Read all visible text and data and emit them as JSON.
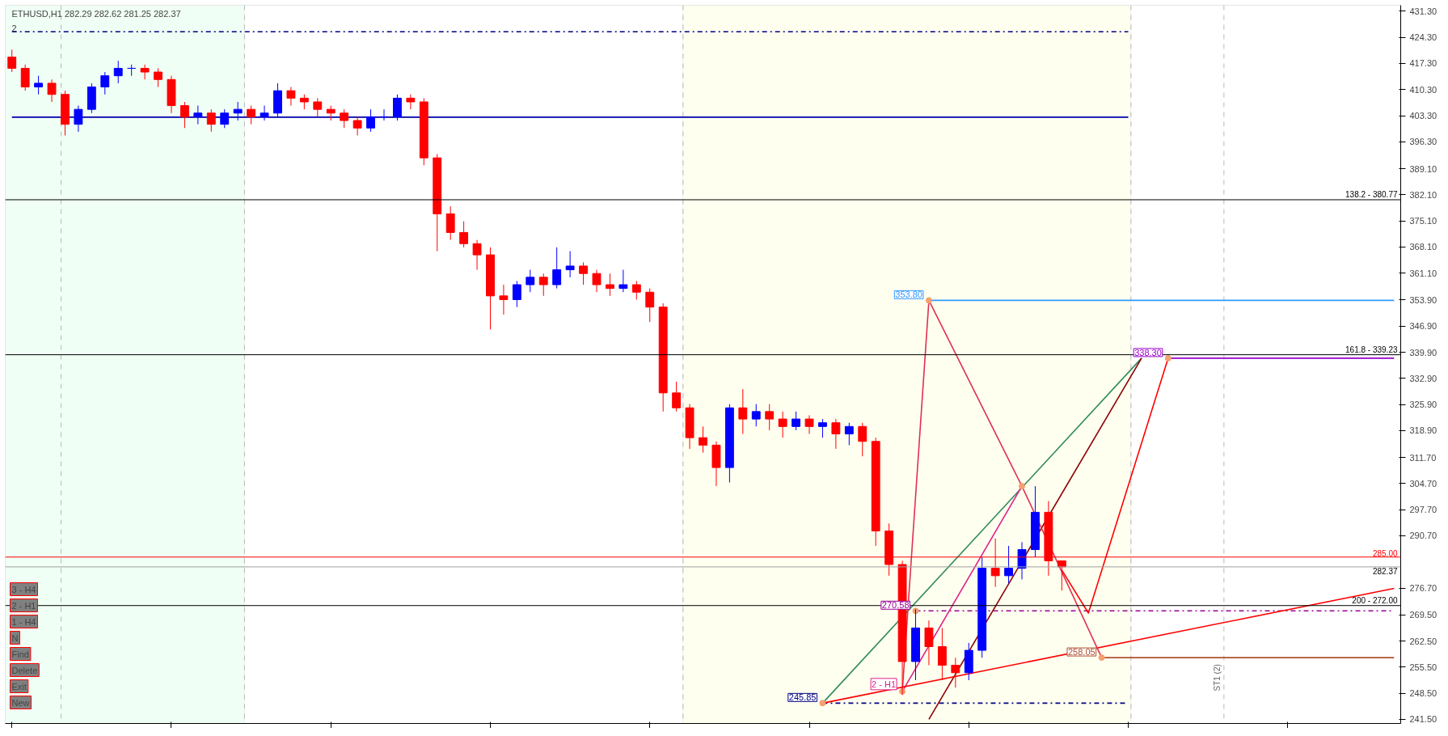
{
  "chart_data": {
    "type": "candlestick",
    "title": "ETHUSD,H1  282.29 282.62 281.25 282.37",
    "subtitle": "2",
    "categories": [
      null,
      null,
      null,
      null,
      null,
      null,
      null,
      null,
      null,
      null,
      null,
      null,
      null,
      null,
      null,
      null,
      null,
      null,
      null,
      null,
      null,
      null,
      null,
      null,
      null,
      null,
      null,
      null,
      null,
      null,
      null,
      null,
      null,
      null,
      null,
      null,
      null,
      null,
      null,
      null,
      null,
      null,
      null,
      null,
      null,
      null,
      null,
      null,
      null,
      null,
      null,
      null,
      null,
      null,
      null,
      null,
      null,
      null,
      null,
      null,
      null,
      null,
      null,
      null,
      null,
      null,
      null,
      null,
      null,
      null,
      null,
      null,
      null,
      null,
      null,
      null,
      null,
      null,
      null,
      null,
      null,
      null,
      null,
      null,
      null,
      null,
      null,
      null,
      null,
      null,
      null,
      null,
      null,
      null,
      null,
      null,
      null,
      null,
      null,
      null,
      null,
      null,
      null,
      null,
      null
    ],
    "ohlc": [
      [
        419,
        421,
        415,
        416
      ],
      [
        416,
        417,
        410,
        411
      ],
      [
        411,
        414,
        409,
        412
      ],
      [
        412,
        413,
        407,
        409
      ],
      [
        409,
        410,
        398,
        401
      ],
      [
        401,
        406,
        399,
        405
      ],
      [
        405,
        412,
        404,
        411
      ],
      [
        411,
        415,
        409,
        414
      ],
      [
        414,
        418,
        412,
        416
      ],
      [
        416,
        417,
        414,
        416
      ],
      [
        416,
        417,
        413,
        415
      ],
      [
        415,
        416,
        411,
        413
      ],
      [
        413,
        414,
        404,
        406
      ],
      [
        406,
        407,
        400,
        403
      ],
      [
        403,
        406,
        401,
        404
      ],
      [
        404,
        405,
        399,
        401
      ],
      [
        401,
        405,
        400,
        404
      ],
      [
        404,
        407,
        402,
        405
      ],
      [
        405,
        406,
        401,
        403
      ],
      [
        403,
        406,
        402,
        404
      ],
      [
        404,
        412,
        403,
        410
      ],
      [
        410,
        411,
        406,
        408
      ],
      [
        408,
        409,
        405,
        407
      ],
      [
        407,
        408,
        403,
        405
      ],
      [
        405,
        406,
        402,
        404
      ],
      [
        404,
        405,
        400,
        402
      ],
      [
        402,
        403,
        398,
        400
      ],
      [
        400,
        405,
        399,
        403
      ],
      [
        403,
        405,
        402,
        403
      ],
      [
        403,
        409,
        402,
        408
      ],
      [
        408,
        409,
        405,
        407
      ],
      [
        407,
        408,
        390,
        392
      ],
      [
        392,
        393,
        367,
        377
      ],
      [
        377,
        379,
        370,
        372
      ],
      [
        372,
        375,
        368,
        369
      ],
      [
        369,
        370,
        362,
        366
      ],
      [
        366,
        368,
        346,
        355
      ],
      [
        355,
        358,
        350,
        354
      ],
      [
        354,
        359,
        352,
        358
      ],
      [
        358,
        362,
        356,
        360
      ],
      [
        360,
        361,
        355,
        358
      ],
      [
        358,
        368,
        357,
        362
      ],
      [
        362,
        367,
        360,
        363
      ],
      [
        363,
        364,
        358,
        361
      ],
      [
        361,
        362,
        356,
        358
      ],
      [
        358,
        361,
        355,
        357
      ],
      [
        357,
        362,
        356,
        358
      ],
      [
        358,
        359,
        354,
        356
      ],
      [
        356,
        357,
        348,
        352
      ],
      [
        352,
        353,
        324,
        329
      ],
      [
        329,
        332,
        324,
        325
      ],
      [
        325,
        326,
        314,
        317
      ],
      [
        317,
        320,
        313,
        315
      ],
      [
        315,
        316,
        304,
        309
      ],
      [
        309,
        326,
        305,
        325
      ],
      [
        325,
        330,
        318,
        322
      ],
      [
        322,
        326,
        320,
        324
      ],
      [
        324,
        326,
        319,
        322
      ],
      [
        322,
        324,
        317,
        320
      ],
      [
        320,
        324,
        319,
        322
      ],
      [
        322,
        323,
        318,
        320
      ],
      [
        320,
        322,
        317,
        321
      ],
      [
        321,
        322,
        314,
        318
      ],
      [
        318,
        321,
        315,
        320
      ],
      [
        320,
        321,
        312,
        316
      ],
      [
        316,
        317,
        288,
        292
      ],
      [
        292,
        294,
        280,
        283
      ],
      [
        283,
        284,
        248,
        257
      ],
      [
        257,
        271,
        252,
        266
      ],
      [
        266,
        268,
        256,
        261
      ],
      [
        261,
        266,
        252,
        256
      ],
      [
        256,
        258,
        250,
        254
      ],
      [
        254,
        262,
        252,
        260
      ],
      [
        260,
        285,
        258,
        282
      ],
      [
        282,
        290,
        277,
        280
      ],
      [
        280,
        288,
        278,
        282
      ],
      [
        282,
        289,
        279,
        287
      ],
      [
        287,
        304,
        285,
        297
      ],
      [
        297,
        300,
        280,
        284
      ],
      [
        284,
        284,
        276,
        282.37
      ],
      null,
      null,
      null,
      null,
      null,
      null,
      null,
      null,
      null,
      null,
      null,
      null,
      null,
      null,
      null,
      null,
      null,
      null,
      null,
      null,
      null,
      null,
      null,
      null,
      null
    ],
    "colors": [
      "#ff0000",
      "#ff0000",
      "#0000ff",
      "#ff0000",
      "#ff0000",
      "#0000ff",
      "#0000ff",
      "#0000ff",
      "#0000ff",
      "#0000ff",
      "#ff0000",
      "#ff0000",
      "#ff0000",
      "#ff0000",
      "#0000ff",
      "#ff0000",
      "#0000ff",
      "#0000ff",
      "#ff0000",
      "#0000ff",
      "#0000ff",
      "#ff0000",
      "#ff0000",
      "#ff0000",
      "#ff0000",
      "#ff0000",
      "#ff0000",
      "#0000ff",
      "#0000ff",
      "#0000ff",
      "#ff0000",
      "#ff0000",
      "#ff0000",
      "#ff0000",
      "#ff0000",
      "#ff0000",
      "#ff0000",
      "#ff0000",
      "#0000ff",
      "#0000ff",
      "#ff0000",
      "#0000ff",
      "#0000ff",
      "#ff0000",
      "#ff0000",
      "#ff0000",
      "#0000ff",
      "#ff0000",
      "#ff0000",
      "#ff0000",
      "#ff0000",
      "#ff0000",
      "#ff0000",
      "#ff0000",
      "#0000ff",
      "#ff0000",
      "#0000ff",
      "#ff0000",
      "#ff0000",
      "#0000ff",
      "#ff0000",
      "#0000ff",
      "#ff0000",
      "#0000ff",
      "#ff0000",
      "#ff0000",
      "#ff0000",
      "#ff0000",
      "#0000ff",
      "#ff0000",
      "#ff0000",
      "#ff0000",
      "#0000ff",
      "#0000ff",
      "#ff0000",
      "#0000ff",
      "#0000ff",
      "#0000ff",
      "#ff0000",
      "#ff0000",
      null,
      null,
      null,
      null,
      null,
      null,
      null,
      null,
      null,
      null,
      null,
      null,
      null,
      null,
      null,
      null,
      null,
      null,
      null,
      null,
      null,
      null,
      null,
      null,
      null
    ],
    "series": [
      {
        "type": "line",
        "color": "#000080",
        "line_style": "dashed",
        "values": [
          425.8,
          null,
          null,
          null,
          null,
          null,
          null,
          null,
          null,
          null,
          null,
          null,
          null,
          null,
          null,
          null,
          null,
          null,
          null,
          null,
          null,
          null,
          null,
          null,
          null,
          null,
          null,
          null,
          null,
          null,
          null,
          null,
          null,
          null,
          null,
          null,
          null,
          null,
          null,
          null,
          null,
          null,
          null,
          null,
          null,
          null,
          null,
          null,
          null,
          null,
          null,
          null,
          null,
          null,
          null,
          null,
          null,
          null,
          null,
          null,
          null,
          null,
          null,
          null,
          null,
          null,
          null,
          null,
          null,
          null,
          null,
          null,
          null,
          null,
          null,
          null,
          null,
          null,
          null,
          null,
          null,
          null,
          null,
          null,
          425.8,
          null,
          null,
          null,
          null,
          null,
          null,
          null,
          null,
          null,
          null,
          null,
          null,
          null,
          null,
          null,
          null,
          null,
          null,
          null,
          null
        ]
      },
      {
        "type": "line",
        "color": "#0000aa",
        "values": [
          402.9,
          null,
          null,
          null,
          null,
          null,
          null,
          null,
          null,
          null,
          null,
          null,
          null,
          null,
          null,
          null,
          null,
          null,
          null,
          null,
          null,
          null,
          null,
          null,
          null,
          null,
          null,
          null,
          null,
          null,
          null,
          null,
          null,
          null,
          null,
          null,
          null,
          null,
          null,
          null,
          null,
          null,
          null,
          null,
          null,
          null,
          null,
          null,
          null,
          null,
          null,
          null,
          null,
          null,
          null,
          null,
          null,
          null,
          null,
          null,
          null,
          null,
          null,
          null,
          null,
          null,
          null,
          null,
          null,
          null,
          null,
          null,
          null,
          null,
          null,
          null,
          null,
          null,
          null,
          null,
          null,
          null,
          null,
          null,
          402.9,
          null,
          null,
          null,
          null,
          null,
          null,
          null,
          null,
          null,
          null,
          null,
          null,
          null,
          null,
          null,
          null,
          null,
          null,
          null,
          null
        ]
      },
      {
        "type": "line",
        "name": "353.80",
        "color": "#3399ff",
        "values": [
          null,
          null,
          null,
          null,
          null,
          null,
          null,
          null,
          null,
          null,
          null,
          null,
          null,
          null,
          null,
          null,
          null,
          null,
          null,
          null,
          null,
          null,
          null,
          null,
          null,
          null,
          null,
          null,
          null,
          null,
          null,
          null,
          null,
          null,
          null,
          null,
          null,
          null,
          null,
          null,
          null,
          null,
          null,
          null,
          null,
          null,
          null,
          null,
          null,
          null,
          null,
          null,
          null,
          null,
          null,
          null,
          null,
          null,
          null,
          null,
          null,
          null,
          null,
          null,
          null,
          null,
          null,
          null,
          null,
          353.8,
          null,
          null,
          null,
          null,
          null,
          null,
          null,
          null,
          null,
          null,
          null,
          null,
          null,
          null,
          null,
          null,
          null,
          null,
          null,
          null,
          null,
          null,
          null,
          null,
          null,
          null,
          null,
          null,
          null,
          null,
          null,
          null,
          null,
          null,
          353.8
        ]
      },
      {
        "type": "line",
        "name": "338.30",
        "color": "#9900cc",
        "values": [
          null,
          null,
          null,
          null,
          null,
          null,
          null,
          null,
          null,
          null,
          null,
          null,
          null,
          null,
          null,
          null,
          null,
          null,
          null,
          null,
          null,
          null,
          null,
          null,
          null,
          null,
          null,
          null,
          null,
          null,
          null,
          null,
          null,
          null,
          null,
          null,
          null,
          null,
          null,
          null,
          null,
          null,
          null,
          null,
          null,
          null,
          null,
          null,
          null,
          null,
          null,
          null,
          null,
          null,
          null,
          null,
          null,
          null,
          null,
          null,
          null,
          null,
          null,
          null,
          null,
          null,
          null,
          null,
          null,
          null,
          null,
          null,
          null,
          null,
          null,
          null,
          null,
          null,
          null,
          null,
          null,
          null,
          null,
          null,
          null,
          null,
          null,
          338.3,
          null,
          null,
          null,
          null,
          null,
          null,
          null,
          null,
          null,
          null,
          null,
          null,
          null,
          null,
          null,
          null,
          338.3
        ]
      },
      {
        "type": "line",
        "name": "270.58",
        "color": "#990099",
        "line_style": "dashed",
        "values": [
          null,
          null,
          null,
          null,
          null,
          null,
          null,
          null,
          null,
          null,
          null,
          null,
          null,
          null,
          null,
          null,
          null,
          null,
          null,
          null,
          null,
          null,
          null,
          null,
          null,
          null,
          null,
          null,
          null,
          null,
          null,
          null,
          null,
          null,
          null,
          null,
          null,
          null,
          null,
          null,
          null,
          null,
          null,
          null,
          null,
          null,
          null,
          null,
          null,
          null,
          null,
          null,
          null,
          null,
          null,
          null,
          null,
          null,
          null,
          null,
          null,
          null,
          null,
          null,
          null,
          null,
          null,
          null,
          270.58,
          null,
          null,
          null,
          null,
          null,
          null,
          null,
          null,
          null,
          null,
          null,
          null,
          null,
          null,
          null,
          null,
          null,
          null,
          null,
          null,
          null,
          null,
          null,
          null,
          null,
          null,
          null,
          null,
          null,
          null,
          null,
          null,
          null,
          null,
          null,
          270.58
        ]
      },
      {
        "type": "line",
        "name": "258.05",
        "color": "#b05030",
        "values": [
          null,
          null,
          null,
          null,
          null,
          null,
          null,
          null,
          null,
          null,
          null,
          null,
          null,
          null,
          null,
          null,
          null,
          null,
          null,
          null,
          null,
          null,
          null,
          null,
          null,
          null,
          null,
          null,
          null,
          null,
          null,
          null,
          null,
          null,
          null,
          null,
          null,
          null,
          null,
          null,
          null,
          null,
          null,
          null,
          null,
          null,
          null,
          null,
          null,
          null,
          null,
          null,
          null,
          null,
          null,
          null,
          null,
          null,
          null,
          null,
          null,
          null,
          null,
          null,
          null,
          null,
          null,
          null,
          null,
          null,
          null,
          null,
          null,
          null,
          null,
          null,
          null,
          null,
          null,
          null,
          null,
          null,
          258.05,
          null,
          null,
          null,
          null,
          null,
          null,
          null,
          null,
          null,
          null,
          null,
          null,
          null,
          null,
          null,
          null,
          null,
          null,
          null,
          null,
          null,
          258.05
        ]
      },
      {
        "type": "line",
        "name": "245.85",
        "color": "#000080",
        "line_style": "dashed",
        "values": [
          null,
          null,
          null,
          null,
          null,
          null,
          null,
          null,
          null,
          null,
          null,
          null,
          null,
          null,
          null,
          null,
          null,
          null,
          null,
          null,
          null,
          null,
          null,
          null,
          null,
          null,
          null,
          null,
          null,
          null,
          null,
          null,
          null,
          null,
          null,
          null,
          null,
          null,
          null,
          null,
          null,
          null,
          null,
          null,
          null,
          null,
          null,
          null,
          null,
          null,
          null,
          null,
          null,
          null,
          null,
          null,
          null,
          null,
          null,
          null,
          null,
          245.85,
          null,
          null,
          null,
          null,
          null,
          null,
          null,
          null,
          null,
          null,
          null,
          null,
          null,
          null,
          null,
          null,
          null,
          null,
          null,
          null,
          null,
          null,
          245.85,
          null,
          null,
          null,
          null,
          null,
          null,
          null,
          null,
          null,
          null,
          null,
          null,
          null,
          null,
          null,
          null,
          null,
          null,
          null,
          null
        ]
      },
      {
        "type": "line",
        "color": "#2e8b57",
        "values": [
          null,
          null,
          null,
          null,
          null,
          null,
          null,
          null,
          null,
          null,
          null,
          null,
          null,
          null,
          null,
          null,
          null,
          null,
          null,
          null,
          null,
          null,
          null,
          null,
          null,
          null,
          null,
          null,
          null,
          null,
          null,
          null,
          null,
          null,
          null,
          null,
          null,
          null,
          null,
          null,
          null,
          null,
          null,
          null,
          null,
          null,
          null,
          null,
          null,
          null,
          null,
          null,
          null,
          null,
          null,
          null,
          null,
          null,
          null,
          null,
          null,
          245.85,
          null,
          null,
          null,
          null,
          null,
          null,
          null,
          null,
          null,
          null,
          null,
          null,
          null,
          null,
          null,
          null,
          null,
          null,
          null,
          null,
          null,
          null,
          null,
          338.3,
          null,
          null,
          null,
          null,
          null,
          null,
          null,
          null,
          null,
          null,
          null,
          null,
          null,
          null,
          null,
          null,
          null,
          null,
          null
        ]
      },
      {
        "type": "line",
        "color": "#8b0000",
        "values": [
          null,
          null,
          null,
          null,
          null,
          null,
          null,
          null,
          null,
          null,
          null,
          null,
          null,
          null,
          null,
          null,
          null,
          null,
          null,
          null,
          null,
          null,
          null,
          null,
          null,
          null,
          null,
          null,
          null,
          null,
          null,
          null,
          null,
          null,
          null,
          null,
          null,
          null,
          null,
          null,
          null,
          null,
          null,
          null,
          null,
          null,
          null,
          null,
          null,
          null,
          null,
          null,
          null,
          null,
          null,
          null,
          null,
          null,
          null,
          null,
          null,
          null,
          null,
          null,
          null,
          null,
          null,
          null,
          null,
          241.5,
          null,
          null,
          null,
          null,
          null,
          null,
          null,
          null,
          null,
          null,
          null,
          null,
          null,
          null,
          null,
          338.3,
          null,
          null,
          null,
          null,
          null,
          null,
          null,
          null,
          null,
          null,
          null,
          null,
          null,
          null,
          null,
          null,
          null,
          null,
          null
        ]
      },
      {
        "type": "line",
        "name": "2 - H1",
        "color": "#dd2288",
        "values": [
          null,
          null,
          null,
          null,
          null,
          null,
          null,
          null,
          null,
          null,
          null,
          null,
          null,
          null,
          null,
          null,
          null,
          null,
          null,
          null,
          null,
          null,
          null,
          null,
          null,
          null,
          null,
          null,
          null,
          null,
          null,
          null,
          null,
          null,
          null,
          null,
          null,
          null,
          null,
          null,
          null,
          null,
          null,
          null,
          null,
          null,
          null,
          null,
          null,
          null,
          null,
          null,
          null,
          null,
          null,
          null,
          null,
          null,
          null,
          null,
          null,
          null,
          null,
          null,
          null,
          null,
          null,
          249,
          null,
          null,
          null,
          null,
          null,
          null,
          null,
          null,
          304,
          null,
          null,
          null,
          null,
          null,
          null,
          null,
          null,
          null,
          null,
          null,
          null,
          null,
          null,
          null,
          null,
          null,
          null,
          null,
          null,
          null,
          null,
          null,
          null,
          null,
          null,
          null,
          null
        ]
      },
      {
        "type": "line",
        "color": "#ff0000",
        "values": [
          null,
          null,
          null,
          null,
          null,
          null,
          null,
          null,
          null,
          null,
          null,
          null,
          null,
          null,
          null,
          null,
          null,
          null,
          null,
          null,
          null,
          null,
          null,
          null,
          null,
          null,
          null,
          null,
          null,
          null,
          null,
          null,
          null,
          null,
          null,
          null,
          null,
          null,
          null,
          null,
          null,
          null,
          null,
          null,
          null,
          null,
          null,
          null,
          null,
          null,
          null,
          null,
          null,
          null,
          null,
          null,
          null,
          null,
          null,
          null,
          null,
          245.85,
          null,
          null,
          null,
          null,
          null,
          null,
          null,
          null,
          null,
          null,
          null,
          null,
          null,
          null,
          null,
          null,
          null,
          null,
          null,
          null,
          null,
          null,
          null,
          null,
          null,
          null,
          null,
          null,
          null,
          null,
          null,
          null,
          null,
          null,
          null,
          null,
          null,
          null,
          null,
          null,
          null,
          null,
          276.6
        ]
      },
      {
        "type": "line",
        "color": "#ff0000",
        "values": [
          null,
          null,
          null,
          null,
          null,
          null,
          null,
          null,
          null,
          null,
          null,
          null,
          null,
          null,
          null,
          null,
          null,
          null,
          null,
          null,
          null,
          null,
          null,
          null,
          null,
          null,
          null,
          null,
          null,
          null,
          null,
          null,
          null,
          null,
          null,
          null,
          null,
          null,
          null,
          null,
          null,
          null,
          null,
          null,
          null,
          null,
          null,
          null,
          null,
          null,
          null,
          null,
          null,
          null,
          null,
          null,
          null,
          null,
          null,
          null,
          null,
          null,
          null,
          null,
          null,
          null,
          null,
          null,
          null,
          null,
          null,
          null,
          null,
          null,
          null,
          null,
          null,
          null,
          null,
          281.5,
          null,
          270,
          null,
          null,
          null,
          null,
          null,
          338.3,
          null,
          null,
          null,
          null,
          null,
          null,
          null,
          null,
          null,
          null,
          null,
          null,
          null,
          null,
          null,
          null,
          null
        ]
      },
      {
        "type": "line",
        "color": "#e03050",
        "values": [
          null,
          null,
          null,
          null,
          null,
          null,
          null,
          null,
          null,
          null,
          null,
          null,
          null,
          null,
          null,
          null,
          null,
          null,
          null,
          null,
          null,
          null,
          null,
          null,
          null,
          null,
          null,
          null,
          null,
          null,
          null,
          null,
          null,
          null,
          null,
          null,
          null,
          null,
          null,
          null,
          null,
          null,
          null,
          null,
          null,
          null,
          null,
          null,
          null,
          null,
          null,
          null,
          null,
          null,
          null,
          null,
          null,
          null,
          null,
          null,
          null,
          null,
          null,
          null,
          null,
          null,
          null,
          249,
          null,
          353.8,
          null,
          null,
          null,
          null,
          null,
          null,
          304,
          null,
          null,
          null,
          null,
          null,
          258.05,
          null,
          null,
          null,
          null,
          null,
          null,
          null,
          null,
          null,
          null,
          null,
          null,
          null,
          null,
          null,
          null,
          null,
          null,
          null,
          null,
          null,
          null
        ]
      },
      {
        "type": "scatter",
        "color": "#f4a070",
        "marker": "circle",
        "values": [
          null,
          null,
          null,
          null,
          null,
          null,
          null,
          null,
          null,
          null,
          null,
          null,
          null,
          null,
          null,
          null,
          null,
          null,
          null,
          null,
          null,
          null,
          null,
          null,
          null,
          null,
          null,
          null,
          null,
          null,
          null,
          null,
          null,
          null,
          null,
          null,
          null,
          null,
          null,
          null,
          null,
          null,
          null,
          null,
          null,
          null,
          null,
          null,
          null,
          null,
          null,
          null,
          null,
          null,
          null,
          null,
          null,
          null,
          null,
          null,
          null,
          245.85,
          null,
          null,
          null,
          null,
          null,
          249,
          270.58,
          353.8,
          null,
          null,
          null,
          null,
          null,
          null,
          304,
          null,
          null,
          null,
          null,
          null,
          258.05,
          null,
          null,
          null,
          null,
          338.3,
          null,
          null,
          null,
          null,
          null,
          null,
          null,
          null,
          null,
          null,
          null,
          null,
          null,
          null,
          null,
          null,
          null
        ]
      }
    ],
    "ylim": [
      240.4,
      432.9
    ],
    "yticks": [
      {
        "value": 431.3,
        "label": "431.30"
      },
      {
        "value": 424.3,
        "label": "424.30"
      },
      {
        "value": 417.3,
        "label": "417.30"
      },
      {
        "value": 410.3,
        "label": "410.30"
      },
      {
        "value": 403.3,
        "label": "403.30"
      },
      {
        "value": 396.3,
        "label": "396.30"
      },
      {
        "value": 389.1,
        "label": "389.10"
      },
      {
        "value": 382.1,
        "label": "382.10"
      },
      {
        "value": 375.1,
        "label": "375.10"
      },
      {
        "value": 368.1,
        "label": "368.10"
      },
      {
        "value": 361.1,
        "label": "361.10"
      },
      {
        "value": 353.9,
        "label": "353.90"
      },
      {
        "value": 346.9,
        "label": "346.90"
      },
      {
        "value": 339.9,
        "label": "339.90"
      },
      {
        "value": 332.9,
        "label": "332.90"
      },
      {
        "value": 325.9,
        "label": "325.90"
      },
      {
        "value": 318.9,
        "label": "318.90"
      },
      {
        "value": 311.7,
        "label": "311.70"
      },
      {
        "value": 304.7,
        "label": "304.70"
      },
      {
        "value": 297.7,
        "label": "297.70"
      },
      {
        "value": 290.7,
        "label": "290.70"
      },
      {
        "value": 276.7,
        "label": "276.70"
      },
      {
        "value": 269.5,
        "label": "269.50"
      },
      {
        "value": 262.5,
        "label": "262.50"
      },
      {
        "value": 255.5,
        "label": "255.50"
      },
      {
        "value": 248.5,
        "label": "248.50"
      },
      {
        "value": 241.5,
        "label": "241.50"
      }
    ],
    "tick_labels": "y",
    "grid": false,
    "ref_lines": [
      {
        "axis": "y",
        "value": 380.77,
        "color": "#000000"
      },
      {
        "axis": "y",
        "value": 339.23,
        "color": "#000000"
      },
      {
        "axis": "y",
        "value": 272.0,
        "color": "#000000"
      },
      {
        "axis": "y",
        "value": 285.0,
        "label": "285.00",
        "color": "#ff0000"
      },
      {
        "axis": "y",
        "value": 282.37,
        "label": "282.37",
        "color": "#a0a0a0"
      }
    ],
    "annotations": [
      {
        "text": "138.2 - 380.77",
        "y": 380.77
      },
      {
        "text": "161.8 - 339.23",
        "y": 339.23
      },
      {
        "text": "200 - 272.00",
        "y": 272.0
      },
      "ST1 (2)",
      "3 - H4",
      "2 - H1",
      "1 - H4",
      "N",
      "Find",
      "Delete",
      "Exit",
      "New"
    ]
  }
}
